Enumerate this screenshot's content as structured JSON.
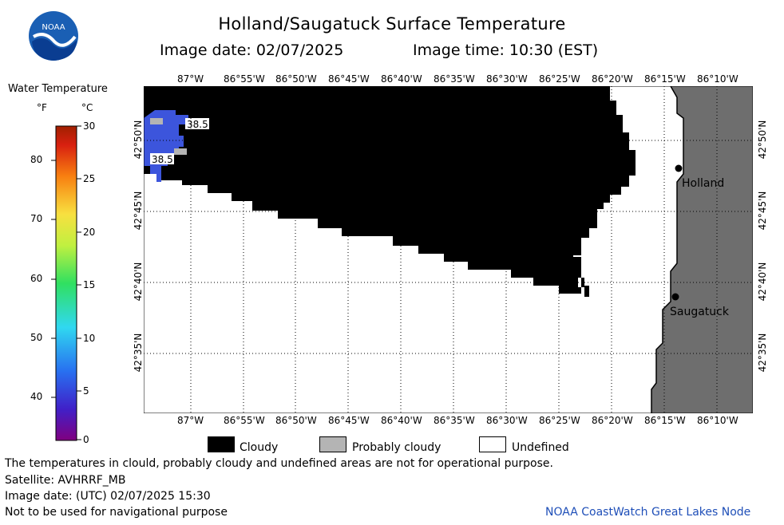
{
  "header": {
    "title": "Holland/Saugatuck Surface Temperature",
    "image_date": "Image date: 02/07/2025",
    "image_time": "Image time: 10:30 (EST)",
    "logo_text": "NOAA"
  },
  "colorbar": {
    "title": "Water Temperature",
    "unit_f": "°F",
    "unit_c": "°C",
    "f_ticks": [
      "80",
      "70",
      "60",
      "50",
      "40"
    ],
    "c_ticks": [
      "30",
      "25",
      "20",
      "15",
      "10",
      "5",
      "0"
    ]
  },
  "map": {
    "lon_labels": [
      "87°W",
      "86°55'W",
      "86°50'W",
      "86°45'W",
      "86°40'W",
      "86°35'W",
      "86°30'W",
      "86°25'W",
      "86°20'W",
      "86°15'W",
      "86°10'W"
    ],
    "lat_labels": [
      "42°50'N",
      "42°45'N",
      "42°40'N",
      "42°35'N"
    ],
    "cities": [
      {
        "name": "Holland"
      },
      {
        "name": "Saugatuck"
      }
    ],
    "temp_labels": [
      "38.5",
      "38.5"
    ],
    "colors": {
      "cloud": "#000000",
      "probably_cloudy": "#b4b4b4",
      "land": "#6e6e6e",
      "water": "#3c55dc",
      "grid": "#000000"
    }
  },
  "legend": {
    "cloudy": "Cloudy",
    "probably_cloudy": "Probably cloudy",
    "undefined": "Undefined"
  },
  "footer": {
    "line1": "The temperatures in clould, probably cloudy and undefined areas are not for operational purpose.",
    "line2": "Satellite: AVHRRF_MB",
    "line3": "Image date: (UTC) 02/07/2025  15:30",
    "line4": "Not to be used for navigational purpose",
    "credit": "NOAA CoastWatch Great Lakes Node"
  }
}
